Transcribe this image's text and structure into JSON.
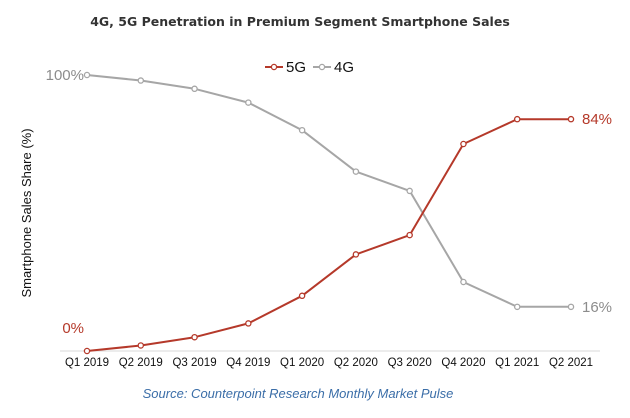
{
  "chart_data": {
    "type": "line",
    "title": "4G, 5G Penetration in Premium Segment Smartphone Sales",
    "ylabel": "Smartphone Sales Share (%)",
    "xlabel": "",
    "source": "Source: Counterpoint Research Monthly Market Pulse",
    "categories": [
      "Q1 2019",
      "Q2 2019",
      "Q3 2019",
      "Q4 2019",
      "Q1 2020",
      "Q2 2020",
      "Q3 2020",
      "Q4 2020",
      "Q1 2021",
      "Q2 2021"
    ],
    "ylim": [
      0,
      100
    ],
    "grid": false,
    "legend_position": "top-center",
    "series": [
      {
        "name": "5G",
        "color": "#b5392a",
        "values": [
          0,
          2,
          5,
          10,
          20,
          35,
          42,
          75,
          84,
          84
        ]
      },
      {
        "name": "4G",
        "color": "#a6a6a6",
        "values": [
          100,
          98,
          95,
          90,
          80,
          65,
          58,
          25,
          16,
          16
        ]
      }
    ],
    "annotations": [
      {
        "series": "4G",
        "index": 0,
        "text": "100%",
        "color": "#8c8c8c"
      },
      {
        "series": "5G",
        "index": 0,
        "text": "0%",
        "color": "#b5392a"
      },
      {
        "series": "5G",
        "index": 9,
        "text": "84%",
        "color": "#b5392a"
      },
      {
        "series": "4G",
        "index": 9,
        "text": "16%",
        "color": "#8c8c8c"
      }
    ]
  }
}
